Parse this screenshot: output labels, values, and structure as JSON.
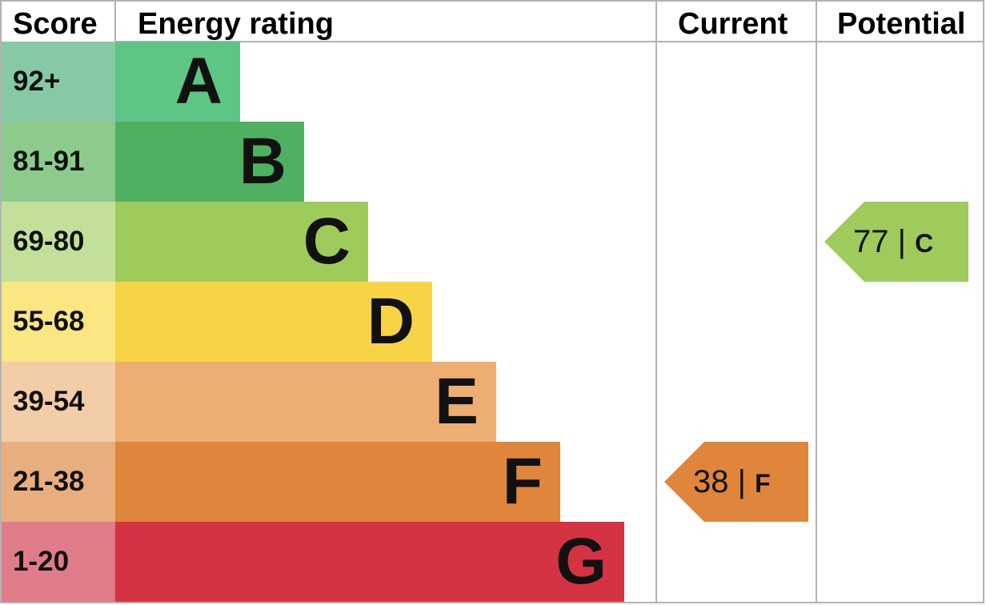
{
  "chart_data": {
    "type": "bar",
    "headers": {
      "score": "Score",
      "rating": "Energy rating",
      "current": "Current",
      "potential": "Potential"
    },
    "bands": [
      {
        "range": "92+",
        "letter": "A",
        "bar_color": "#5ec586",
        "score_bg": "#86c9a4"
      },
      {
        "range": "81-91",
        "letter": "B",
        "bar_color": "#4fb062",
        "score_bg": "#8ccb8c"
      },
      {
        "range": "69-80",
        "letter": "C",
        "bar_color": "#9ecb5b",
        "score_bg": "#c3e09a"
      },
      {
        "range": "55-68",
        "letter": "D",
        "bar_color": "#f7d446",
        "score_bg": "#fae682"
      },
      {
        "range": "39-54",
        "letter": "E",
        "bar_color": "#eead73",
        "score_bg": "#f3cda7"
      },
      {
        "range": "21-38",
        "letter": "F",
        "bar_color": "#e0853c",
        "score_bg": "#e9ae7f"
      },
      {
        "range": "1-20",
        "letter": "G",
        "bar_color": "#d43344",
        "score_bg": "#e07b8a"
      }
    ],
    "current": {
      "value": 38,
      "letter": "F",
      "text": "38 | ",
      "color": "#e0853c"
    },
    "potential": {
      "value": 77,
      "letter": "C",
      "text": "77 | ",
      "color": "#9ecb5b"
    }
  }
}
